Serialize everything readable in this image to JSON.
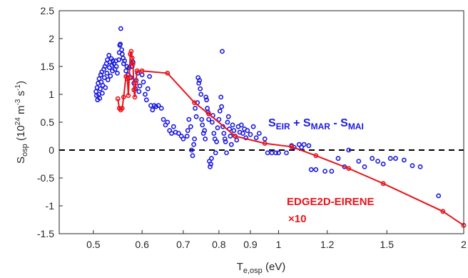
{
  "chart_data": {
    "type": "scatter",
    "xlabel": {
      "main": "T",
      "sub": "e,osp",
      "unit": " (eV)"
    },
    "ylabel": {
      "main": "S",
      "sub": "osp",
      "unit_a": " (10",
      "unit_b": "24",
      "unit_c": " m",
      "unit_d": "-3",
      "unit_e": " s",
      "unit_f": "-1",
      "unit_g": ")"
    },
    "x_scale": "log",
    "xlim": [
      0.44,
      2.0
    ],
    "ylim": [
      -1.5,
      2.5
    ],
    "x_ticks": [
      {
        "value": 0.5,
        "label": "0.5"
      },
      {
        "value": 0.6,
        "label": "0.6"
      },
      {
        "value": 0.7,
        "label": "0.7"
      },
      {
        "value": 0.8,
        "label": "0.8"
      },
      {
        "value": 0.9,
        "label": "0.9"
      },
      {
        "value": 1.0,
        "label": "1"
      },
      {
        "value": 1.2,
        "label": "1.2"
      },
      {
        "value": 1.5,
        "label": "1.5"
      },
      {
        "value": 2.0,
        "label": "2"
      }
    ],
    "y_ticks": [
      {
        "value": 2.5,
        "label": "2.5"
      },
      {
        "value": 2,
        "label": "2"
      },
      {
        "value": 1.5,
        "label": "1.5"
      },
      {
        "value": 1,
        "label": "1"
      },
      {
        "value": 0.5,
        "label": "0.5"
      },
      {
        "value": 0,
        "label": "0"
      },
      {
        "value": -0.5,
        "label": "-0.5"
      },
      {
        "value": -1,
        "label": "-1"
      },
      {
        "value": -1.5,
        "label": "-1.5"
      }
    ],
    "zero_line": {
      "y": 0,
      "style": "dashed",
      "color": "#000000"
    },
    "annotations": {
      "blue": {
        "parts": [
          "S",
          "EIR",
          " + S",
          "MAR",
          " - S",
          "MAI"
        ],
        "color": "#1a1adf"
      },
      "red_line1": "EDGE2D-EIRENE",
      "red_line2": "×10",
      "red_color": "#e8141b"
    },
    "series": [
      {
        "marker": "circle-open",
        "color": "#1a1adf",
        "points": [
          [
            0.505,
            1.05
          ],
          [
            0.506,
            0.98
          ],
          [
            0.507,
            1.12
          ],
          [
            0.508,
            0.9
          ],
          [
            0.509,
            1.2
          ],
          [
            0.51,
            1.0
          ],
          [
            0.511,
            1.28
          ],
          [
            0.512,
            0.93
          ],
          [
            0.513,
            1.1
          ],
          [
            0.514,
            1.35
          ],
          [
            0.515,
            1.22
          ],
          [
            0.516,
            1.4
          ],
          [
            0.517,
            1.02
          ],
          [
            0.518,
            1.16
          ],
          [
            0.52,
            1.45
          ],
          [
            0.521,
            1.3
          ],
          [
            0.522,
            1.5
          ],
          [
            0.523,
            1.12
          ],
          [
            0.525,
            1.55
          ],
          [
            0.526,
            1.38
          ],
          [
            0.527,
            1.62
          ],
          [
            0.528,
            1.26
          ],
          [
            0.53,
            1.7
          ],
          [
            0.531,
            1.48
          ],
          [
            0.532,
            1.58
          ],
          [
            0.533,
            1.33
          ],
          [
            0.535,
            1.64
          ],
          [
            0.536,
            1.52
          ],
          [
            0.537,
            1.42
          ],
          [
            0.538,
            1.6
          ],
          [
            0.54,
            1.55
          ],
          [
            0.542,
            1.45
          ],
          [
            0.544,
            1.6
          ],
          [
            0.545,
            1.5
          ],
          [
            0.547,
            1.38
          ],
          [
            0.55,
            1.62
          ],
          [
            0.551,
            1.75
          ],
          [
            0.552,
            1.88
          ],
          [
            0.553,
            1.9
          ],
          [
            0.554,
            2.18
          ],
          [
            0.556,
            1.8
          ],
          [
            0.557,
            1.72
          ],
          [
            0.559,
            1.65
          ],
          [
            0.56,
            1.55
          ],
          [
            0.562,
            1.6
          ],
          [
            0.565,
            1.42
          ],
          [
            0.567,
            1.5
          ],
          [
            0.57,
            1.35
          ],
          [
            0.572,
            1.48
          ],
          [
            0.575,
            1.3
          ],
          [
            0.578,
            1.5
          ],
          [
            0.58,
            1.58
          ],
          [
            0.582,
            1.2
          ],
          [
            0.585,
            1.1
          ],
          [
            0.587,
            1.25
          ],
          [
            0.59,
            1.38
          ],
          [
            0.593,
            1.05
          ],
          [
            0.595,
            1.15
          ],
          [
            0.6,
            1.35
          ],
          [
            0.603,
            1.22
          ],
          [
            0.607,
            1.0
          ],
          [
            0.61,
            0.9
          ],
          [
            0.613,
            1.1
          ],
          [
            0.617,
            1.32
          ],
          [
            0.62,
            0.8
          ],
          [
            0.624,
            0.72
          ],
          [
            0.628,
            0.8
          ],
          [
            0.632,
            0.78
          ],
          [
            0.638,
            0.8
          ],
          [
            0.645,
            0.75
          ],
          [
            0.65,
            0.55
          ],
          [
            0.655,
            0.45
          ],
          [
            0.66,
            0.5
          ],
          [
            0.665,
            0.35
          ],
          [
            0.67,
            0.3
          ],
          [
            0.675,
            0.42
          ],
          [
            0.68,
            0.32
          ],
          [
            0.688,
            0.3
          ],
          [
            0.695,
            0.25
          ],
          [
            0.7,
            0.2
          ],
          [
            0.71,
            0.25
          ],
          [
            0.712,
            0.35
          ],
          [
            0.715,
            0.55
          ],
          [
            0.72,
            0.42
          ],
          [
            0.722,
            0.0
          ],
          [
            0.725,
            -0.1
          ],
          [
            0.728,
            0.1
          ],
          [
            0.73,
            0.2
          ],
          [
            0.732,
            0.75
          ],
          [
            0.735,
            0.6
          ],
          [
            0.738,
            0.85
          ],
          [
            0.74,
            1.3
          ],
          [
            0.742,
            1.2
          ],
          [
            0.744,
            1.25
          ],
          [
            0.746,
            1.1
          ],
          [
            0.748,
            1.0
          ],
          [
            0.75,
            0.55
          ],
          [
            0.752,
            0.45
          ],
          [
            0.755,
            0.3
          ],
          [
            0.758,
            0.35
          ],
          [
            0.76,
            0.2
          ],
          [
            0.762,
            0.95
          ],
          [
            0.764,
            0.9
          ],
          [
            0.766,
            0.75
          ],
          [
            0.768,
            0.68
          ],
          [
            0.77,
            0.55
          ],
          [
            0.772,
            -0.2
          ],
          [
            0.774,
            -0.3
          ],
          [
            0.776,
            -0.25
          ],
          [
            0.778,
            -0.15
          ],
          [
            0.78,
            0.5
          ],
          [
            0.782,
            0.62
          ],
          [
            0.785,
            0.3
          ],
          [
            0.788,
            0.2
          ],
          [
            0.79,
            -0.05
          ],
          [
            0.793,
            0.15
          ],
          [
            0.796,
            0.4
          ],
          [
            0.8,
            0.55
          ],
          [
            0.803,
            0.7
          ],
          [
            0.806,
            0.95
          ],
          [
            0.808,
            0.78
          ],
          [
            0.81,
            1.77
          ],
          [
            0.812,
            0.42
          ],
          [
            0.815,
            0.3
          ],
          [
            0.818,
            0.2
          ],
          [
            0.82,
            0.15
          ],
          [
            0.823,
            -0.05
          ],
          [
            0.826,
            0.5
          ],
          [
            0.829,
            0.6
          ],
          [
            0.832,
            0.38
          ],
          [
            0.835,
            0.25
          ],
          [
            0.838,
            0.1
          ],
          [
            0.842,
            0.45
          ],
          [
            0.846,
            0.35
          ],
          [
            0.85,
            0.25
          ],
          [
            0.855,
            0.18
          ],
          [
            0.86,
            0.42
          ],
          [
            0.865,
            0.32
          ],
          [
            0.87,
            0.45
          ],
          [
            0.875,
            0.3
          ],
          [
            0.88,
            0.38
          ],
          [
            0.885,
            0.22
          ],
          [
            0.89,
            0.35
          ],
          [
            0.9,
            0.28
          ],
          [
            0.91,
            0.42
          ],
          [
            0.92,
            0.22
          ],
          [
            0.93,
            0.3
          ],
          [
            0.95,
            0.2
          ],
          [
            0.96,
            -0.05
          ],
          [
            0.975,
            -0.05
          ],
          [
            0.99,
            -0.05
          ],
          [
            1.0,
            -0.05
          ],
          [
            1.03,
            -0.05
          ],
          [
            1.05,
            0.08
          ],
          [
            1.06,
            0.05
          ],
          [
            1.08,
            0.1
          ],
          [
            1.09,
            0.05
          ],
          [
            1.1,
            0.1
          ],
          [
            1.12,
            0.08
          ],
          [
            1.13,
            -0.35
          ],
          [
            1.15,
            -0.35
          ],
          [
            1.19,
            -0.38
          ],
          [
            1.22,
            -0.38
          ],
          [
            1.25,
            -0.15
          ],
          [
            1.28,
            -0.3
          ],
          [
            1.3,
            0.0
          ],
          [
            1.35,
            -0.2
          ],
          [
            1.38,
            -0.3
          ],
          [
            1.42,
            -0.15
          ],
          [
            1.45,
            -0.2
          ],
          [
            1.48,
            -0.25
          ],
          [
            1.52,
            -0.15
          ],
          [
            1.55,
            -0.15
          ],
          [
            1.6,
            -0.18
          ],
          [
            1.65,
            -0.28
          ],
          [
            1.7,
            -0.3
          ],
          [
            1.82,
            -0.82
          ]
        ]
      },
      {
        "marker": "circle-open",
        "line": true,
        "color": "#e8141b",
        "points": [
          [
            0.548,
            0.92
          ],
          [
            0.551,
            0.75
          ],
          [
            0.554,
            0.72
          ],
          [
            0.557,
            0.75
          ],
          [
            0.56,
            0.95
          ],
          [
            0.565,
            1.32
          ],
          [
            0.568,
            1.28
          ],
          [
            0.57,
            0.98
          ],
          [
            0.572,
            1.3
          ],
          [
            0.574,
            1.72
          ],
          [
            0.576,
            1.77
          ],
          [
            0.578,
            1.65
          ],
          [
            0.58,
            1.55
          ],
          [
            0.582,
            1.08
          ],
          [
            0.584,
            0.95
          ],
          [
            0.586,
            1.2
          ],
          [
            0.589,
            1.42
          ],
          [
            0.6,
            1.42
          ],
          [
            0.66,
            1.38
          ],
          [
            0.73,
            0.85
          ],
          [
            0.77,
            0.65
          ],
          [
            0.85,
            0.25
          ],
          [
            0.95,
            0.12
          ],
          [
            1.05,
            0.06
          ],
          [
            1.15,
            -0.1
          ],
          [
            1.3,
            -0.33
          ],
          [
            1.48,
            -0.6
          ],
          [
            1.85,
            -1.1
          ],
          [
            2.0,
            -1.35
          ]
        ]
      }
    ]
  }
}
